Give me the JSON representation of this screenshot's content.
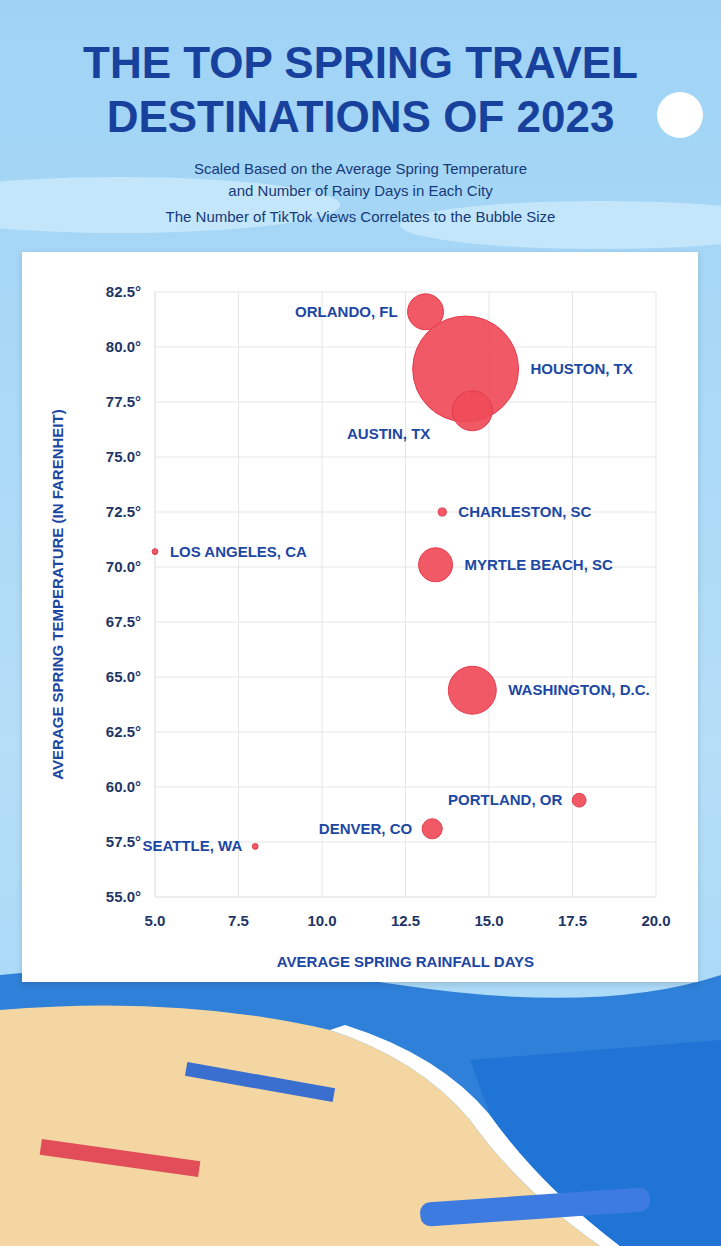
{
  "chart_data": {
    "type": "scatter",
    "title": "THE TOP SPRING TRAVEL DESTINATIONS OF 2023",
    "subtitle": [
      "Scaled Based on the Average Spring Temperature",
      "and Number of Rainy Days in Each City",
      "The Number of TikTok Views Correlates to the Bubble Size"
    ],
    "x_label": "AVERAGE SPRING RAINFALL DAYS",
    "y_label": "AVERAGE SPRING TEMPERATURE (IN FARENHEIT)",
    "labels": [
      "ORLANDO, FL",
      "HOUSTON, TX",
      "AUSTIN, TX",
      "CHARLESTON, SC",
      "LOS ANGELES, CA",
      "MYRTLE BEACH, SC",
      "WASHINGTON, D.C.",
      "PORTLAND, OR",
      "DENVER, CO",
      "SEATTLE, WA"
    ],
    "x": [
      13.1,
      14.3,
      14.5,
      13.6,
      5.0,
      13.4,
      14.5,
      17.7,
      13.3,
      8.0
    ],
    "y": [
      81.6,
      79.0,
      77.1,
      72.5,
      70.7,
      70.1,
      64.4,
      59.4,
      58.1,
      57.3
    ],
    "sizes": [
      11.5,
      100,
      14.2,
      0.6,
      0.3,
      10.3,
      20.5,
      1.7,
      3.6,
      0.3
    ],
    "color": "#f04b59",
    "xlim": [
      5,
      20
    ],
    "xticks": [
      {
        "value": 5,
        "label": "5.0"
      },
      7.5,
      {
        "value": 10,
        "label": "10.0"
      },
      12.5,
      {
        "value": 15,
        "label": "15.0"
      },
      17.5,
      {
        "value": 20,
        "label": "20.0"
      }
    ],
    "ylim": [
      55,
      82.5
    ],
    "yticks": [
      {
        "value": 55,
        "label": "55.0°"
      },
      {
        "value": 57.5,
        "label": "57.5°"
      },
      {
        "value": 60,
        "label": "60.0°"
      },
      {
        "value": 62.5,
        "label": "62.5°"
      },
      {
        "value": 65,
        "label": "65.0°"
      },
      {
        "value": 67.5,
        "label": "67.5°"
      },
      {
        "value": 70,
        "label": "70.0°"
      },
      {
        "value": 72.5,
        "label": "72.5°"
      },
      {
        "value": 75,
        "label": "75.0°"
      },
      {
        "value": 77.5,
        "label": "77.5°"
      },
      {
        "value": 80,
        "label": "80.0°"
      },
      {
        "value": 82.5,
        "label": "82.5°"
      }
    ],
    "grid": true
  }
}
